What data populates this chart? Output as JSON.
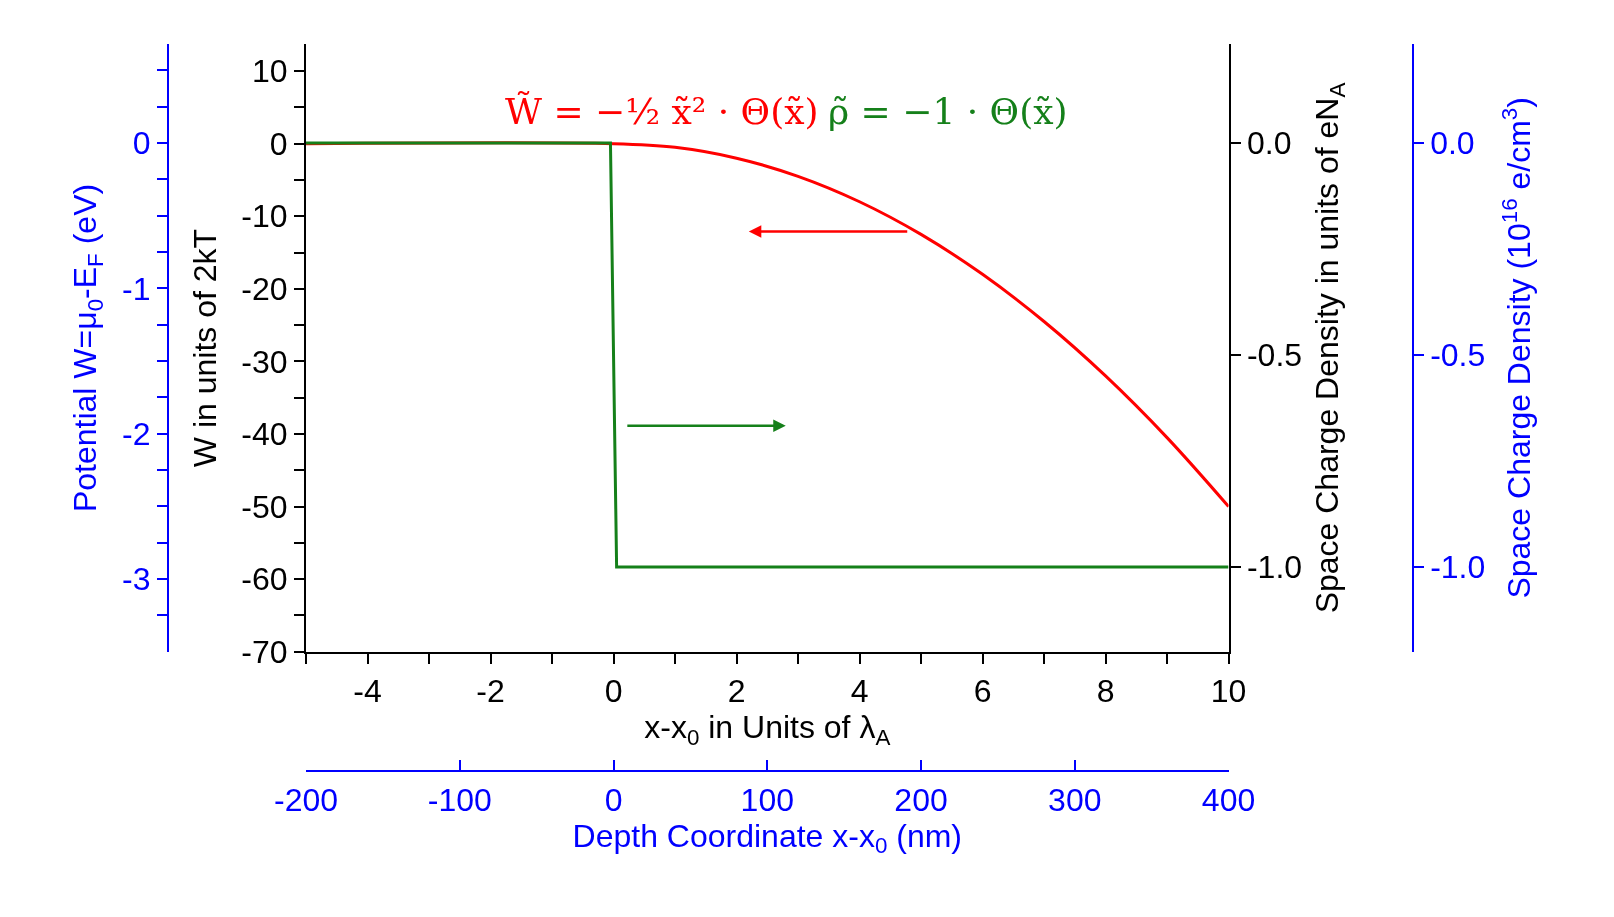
{
  "chart_data": {
    "type": "line",
    "xlabel": "x-x$_{0}$ in Units of λ$_{A}$",
    "ylabel": "W in units of 2kT",
    "y2label": "Space Charge Density in units of eN$_{A}$",
    "y3label": "Potential W=μ$_{0}$-E$_{F}$ (eV)",
    "x2label": "Depth Coordinate x-x$_{0}$ (nm)",
    "annotations": [
      "W̃ = −½ x̃² · Θ(x̃)",
      "ρ̃ = −1 · Θ(x̃)",
      "Space Charge Density (10$^{16}$ e/cm$^{3}$)"
    ],
    "series": [
      {
        "color": "#ff0000",
        "x": [
          -5,
          0,
          1,
          2,
          3,
          4,
          5,
          6,
          7,
          8,
          9,
          10
        ],
        "values": [
          0,
          0,
          -0.5,
          -2,
          -4.5,
          -8,
          -12.5,
          -18,
          -24.5,
          -32,
          -40.5,
          -50
        ]
      },
      {
        "color": "#15801a",
        "axis": "y2",
        "x": [
          -5,
          -0.05,
          0.05,
          10
        ],
        "values": [
          0,
          0,
          -1,
          -1
        ]
      }
    ],
    "xlim": [
      -5,
      10
    ],
    "xticks": [
      {
        "value": -5,
        "label": null
      },
      -4,
      {
        "value": -3,
        "label": null
      },
      -2,
      {
        "value": -1,
        "label": null
      },
      0,
      {
        "value": 1,
        "label": null
      },
      2,
      {
        "value": 3,
        "label": null
      },
      4,
      {
        "value": 5,
        "label": null
      },
      6,
      {
        "value": 7,
        "label": null
      },
      8,
      {
        "value": 9,
        "label": null
      },
      10
    ],
    "ylim": [
      -70,
      13.7
    ],
    "yticks": [
      -70,
      {
        "value": -65,
        "label": null
      },
      -60,
      {
        "value": -55,
        "label": null
      },
      -50,
      {
        "value": -45,
        "label": null
      },
      -40,
      {
        "value": -35,
        "label": null
      },
      -30,
      {
        "value": -25,
        "label": null
      },
      -20,
      {
        "value": -15,
        "label": null
      },
      -10,
      {
        "value": -5,
        "label": null
      },
      0,
      {
        "value": 5,
        "label": null
      },
      10
    ],
    "y2lim": [
      -1.2,
      0.233
    ],
    "y2ticks": [
      {
        "value": 0,
        "label": "0.0"
      },
      {
        "value": -0.5,
        "label": "-0.5"
      },
      {
        "value": -1,
        "label": "-1.0"
      }
    ],
    "y3lim": [
      -3.5,
      0.68
    ],
    "y3ticks": [
      0,
      {
        "value": -0.25,
        "label": null
      },
      {
        "value": -0.5,
        "label": null
      },
      {
        "value": -0.75,
        "label": null
      },
      -1,
      {
        "value": -1.25,
        "label": null
      },
      {
        "value": -1.5,
        "label": null
      },
      {
        "value": -1.75,
        "label": null
      },
      -2,
      {
        "value": -2.25,
        "label": null
      },
      {
        "value": -2.5,
        "label": null
      },
      {
        "value": -2.75,
        "label": null
      },
      -3,
      {
        "value": -3.25,
        "label": null
      },
      {
        "value": 0.25,
        "label": null
      },
      {
        "value": 0.5,
        "label": null
      }
    ],
    "x2lim": [
      -200,
      400
    ],
    "x2ticks": [
      -200,
      -100,
      0,
      100,
      200,
      300,
      400
    ]
  }
}
